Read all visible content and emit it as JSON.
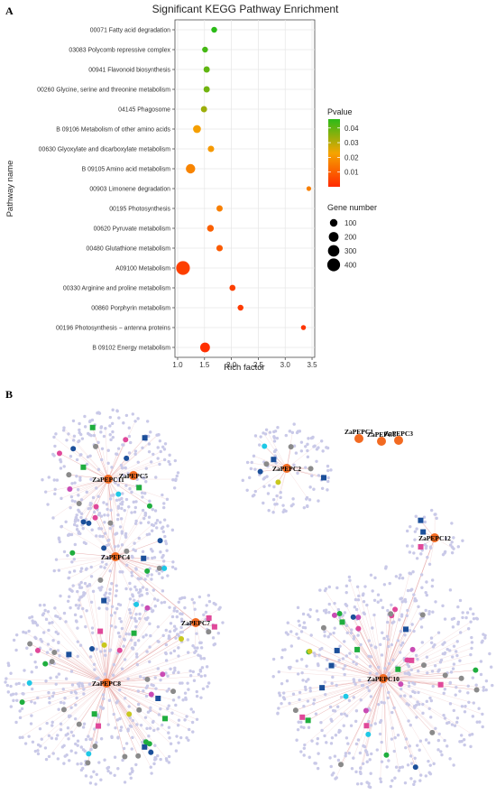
{
  "panels": {
    "a": "A",
    "b": "B"
  },
  "chart_data": [
    {
      "type": "scatter",
      "title": "Significant KEGG Pathway Enrichment",
      "xlabel": "Rich factor",
      "ylabel": "Pathway name",
      "xlim": [
        0.95,
        3.55
      ],
      "xticks": [
        "1.0",
        "1.5",
        "2.0",
        "2.5",
        "3.0",
        "3.5"
      ],
      "grid": true,
      "points": [
        {
          "pathway": "00071 Fatty acid degradation",
          "rich_factor": 1.68,
          "pvalue": 0.046,
          "genes": 45
        },
        {
          "pathway": "03083 Polycomb repressive complex",
          "rich_factor": 1.51,
          "pvalue": 0.043,
          "genes": 45
        },
        {
          "pathway": "00941 Flavonoid biosynthesis",
          "rich_factor": 1.54,
          "pvalue": 0.04,
          "genes": 55
        },
        {
          "pathway": "00260 Glycine, serine and threonine metabolism",
          "rich_factor": 1.54,
          "pvalue": 0.038,
          "genes": 55
        },
        {
          "pathway": "04145 Phagosome",
          "rich_factor": 1.49,
          "pvalue": 0.033,
          "genes": 55
        },
        {
          "pathway": "B  09106 Metabolism of other amino acids",
          "rich_factor": 1.36,
          "pvalue": 0.022,
          "genes": 110
        },
        {
          "pathway": "00630 Glyoxylate and dicarboxylate metabolism",
          "rich_factor": 1.62,
          "pvalue": 0.021,
          "genes": 60
        },
        {
          "pathway": "B  09105 Amino acid metabolism",
          "rich_factor": 1.24,
          "pvalue": 0.017,
          "genes": 180
        },
        {
          "pathway": "00903 Limonene degradation",
          "rich_factor": 3.44,
          "pvalue": 0.016,
          "genes": 20
        },
        {
          "pathway": "00195 Photosynthesis",
          "rich_factor": 1.78,
          "pvalue": 0.016,
          "genes": 55
        },
        {
          "pathway": "00620 Pyruvate metabolism",
          "rich_factor": 1.61,
          "pvalue": 0.01,
          "genes": 70
        },
        {
          "pathway": "00480 Glutathione metabolism",
          "rich_factor": 1.78,
          "pvalue": 0.009,
          "genes": 60
        },
        {
          "pathway": "A09100 Metabolism",
          "rich_factor": 1.1,
          "pvalue": 0.004,
          "genes": 470
        },
        {
          "pathway": "00330 Arginine and proline metabolism",
          "rich_factor": 2.02,
          "pvalue": 0.004,
          "genes": 50
        },
        {
          "pathway": "00860 Porphyrin metabolism",
          "rich_factor": 2.17,
          "pvalue": 0.003,
          "genes": 45
        },
        {
          "pathway": "00196 Photosynthesis − antenna proteins",
          "rich_factor": 3.34,
          "pvalue": 0.002,
          "genes": 25
        },
        {
          "pathway": "B  09102 Energy metabolism",
          "rich_factor": 1.51,
          "pvalue": 0.001,
          "genes": 200
        }
      ],
      "legend": {
        "position": "right",
        "color_title": "Pvalue",
        "color_range": [
          0.0,
          0.046
        ],
        "color_ticks": [
          "0.04",
          "0.03",
          "0.02",
          "0.01"
        ],
        "color_scale": [
          "#ff2a00",
          "#f5a400",
          "#2bbb18"
        ],
        "size_title": "Gene number",
        "size_ticks": [
          "100",
          "200",
          "300",
          "400"
        ]
      }
    },
    {
      "type": "network",
      "hubs": [
        {
          "label": "ZaPEPC11"
        },
        {
          "label": "ZaPEPC5"
        },
        {
          "label": "ZaPEPC4"
        },
        {
          "label": "ZaPEPC7"
        },
        {
          "label": "ZaPEPC8"
        },
        {
          "label": "ZaPEPC2"
        },
        {
          "label": "ZaPEPC1"
        },
        {
          "label": "ZaPEPC6"
        },
        {
          "label": "ZaPEPC3"
        },
        {
          "label": "ZaPEPC12"
        },
        {
          "label": "ZaPEPC10"
        }
      ],
      "colors": {
        "hub": "#f26a21",
        "neighbor": "#c9c9e8",
        "edge": "#e9b2b2",
        "gray": "#8a8a8a",
        "cyan": "#1ec8e6",
        "green": "#1fae3e",
        "navy": "#1b4f9a",
        "magenta": "#c94bb4",
        "pink": "#e0489a",
        "olive": "#c8c81e"
      }
    }
  ]
}
